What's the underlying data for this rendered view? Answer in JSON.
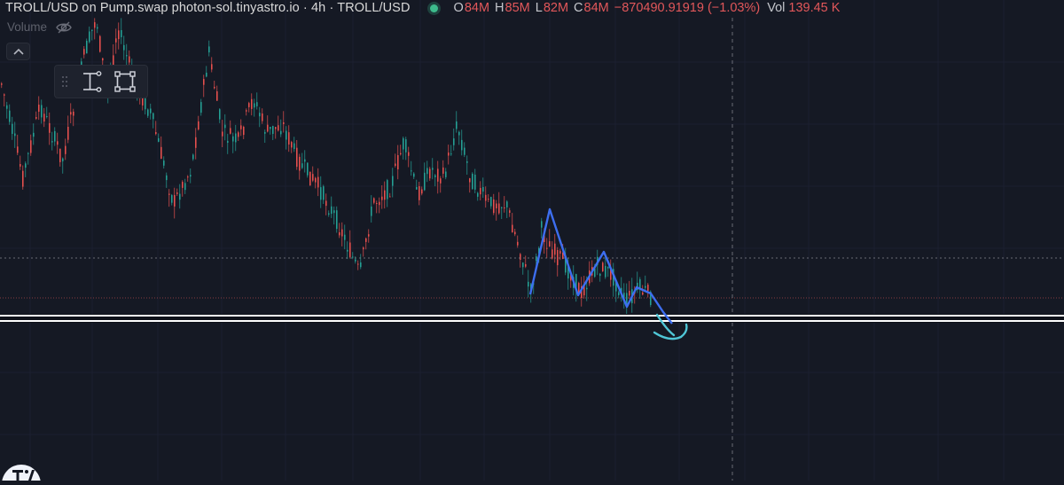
{
  "legend": {
    "title": "TROLL/USD on Pump.swap photon-sol.tinyastro.io · 4h · TROLL/USD",
    "open_label": "O",
    "open_value": "84M",
    "high_label": "H",
    "high_value": "85M",
    "low_label": "L",
    "low_value": "82M",
    "close_label": "C",
    "close_value": "84M",
    "change": "−870490.91919 (−1.03%)",
    "volume_label": "Vol",
    "volume_value": "139.45 K"
  },
  "volume_indicator": {
    "label": "Volume",
    "visibility_icon": "eye-slash-icon"
  },
  "toolbar": {
    "collapse_icon": "chevron-up-icon",
    "tools": [
      "drag-handle-icon",
      "measure-icon",
      "rectangle-icon"
    ]
  },
  "colors": {
    "background": "#151924",
    "up_candle": "#26a69a",
    "down_candle": "#ef5350",
    "drawing_blue": "#3d6ef0",
    "drawing_cyan": "#4fc6d6",
    "support_line": "#ffffff"
  },
  "chart_data": {
    "type": "candlestick",
    "symbol": "TROLL/USD",
    "timeframe": "4h",
    "trend": "downtrend",
    "annotations": [
      "zigzag drawing of lower highs",
      "horizontal support line",
      "curved arrow pointing down below support"
    ]
  }
}
